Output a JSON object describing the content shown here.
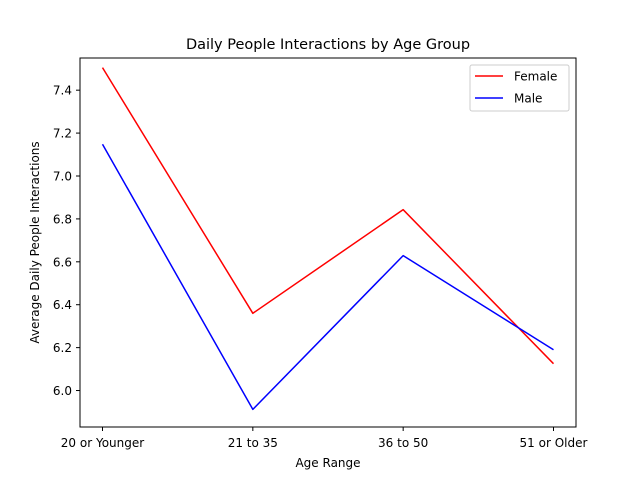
{
  "chart_data": {
    "type": "line",
    "title": "Daily People Interactions by Age Group",
    "xlabel": "Age Range",
    "ylabel": "Average Daily People Interactions",
    "categories": [
      "20 or Younger",
      "21 to 35",
      "36 to 50",
      "51 or Older"
    ],
    "series": [
      {
        "name": "Female",
        "color": "#ff0000",
        "values": [
          7.505,
          6.36,
          6.843,
          6.125
        ]
      },
      {
        "name": "Male",
        "color": "#0000ff",
        "values": [
          7.148,
          5.912,
          6.629,
          6.19
        ]
      }
    ],
    "ylim": [
      5.83,
      7.55
    ],
    "yticks": [
      6.0,
      6.2,
      6.4,
      6.6,
      6.8,
      7.0,
      7.2,
      7.4
    ],
    "ytick_labels": [
      "6.0",
      "6.2",
      "6.4",
      "6.6",
      "6.8",
      "7.0",
      "7.2",
      "7.4"
    ],
    "grid": false,
    "legend_position": "top-right"
  }
}
